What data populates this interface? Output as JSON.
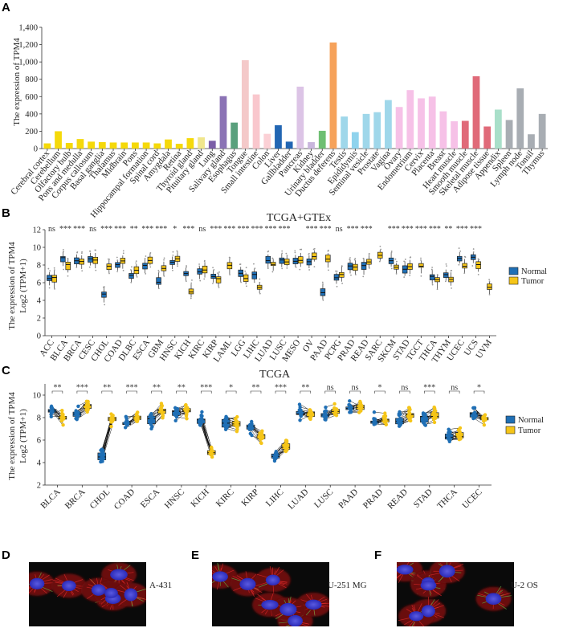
{
  "panels": {
    "a": "A",
    "b": "B",
    "c": "C",
    "d": "D",
    "e": "E",
    "f": "F"
  },
  "colors": {
    "normal": "#1f6fb5",
    "tumor": "#f5c518"
  },
  "chart_data": [
    {
      "type": "bar",
      "ylabel": "The expression of TPM4",
      "ylim": [
        0,
        1400
      ],
      "yticks": [
        "0",
        "200",
        "400",
        "600",
        "800",
        "1,000",
        "1,200",
        "1,400"
      ],
      "categories": [
        "Cerebral cortex",
        "Cerebellum",
        "Olfactory bulb",
        "Pons and medulla",
        "Corpus callosum",
        "Basal ganglia",
        "Thalamus",
        "Midbrain",
        "Pons",
        "Hippocampal formation",
        "Spinal cord",
        "Amygdala",
        "Retina",
        "Thyroid gland",
        "Pituitary gland",
        "Lung",
        "Salivary gland",
        "Esophagus",
        "Tongue",
        "Small intestine",
        "Colon",
        "Liver",
        "Gallbladder",
        "Pancreas",
        "Kidney",
        "Urinary bladder",
        "Ductus deferens",
        "Testis",
        "Epididymis",
        "Seminal vesicle",
        "Prostate",
        "Vagina",
        "Ovary",
        "Endometrium",
        "Cervix",
        "Placenta",
        "Breast",
        "Heart muscle",
        "Smooth muscle",
        "Skeletal muscle",
        "Adipose tissue",
        "Appendix",
        "Spleen",
        "Lymph node",
        "Tonsil",
        "Thymus"
      ],
      "values": [
        60,
        200,
        65,
        110,
        80,
        75,
        70,
        70,
        70,
        70,
        60,
        105,
        55,
        120,
        130,
        90,
        605,
        300,
        1020,
        625,
        170,
        270,
        80,
        715,
        75,
        205,
        1225,
        370,
        190,
        400,
        420,
        560,
        480,
        675,
        580,
        600,
        430,
        315,
        320,
        835,
        255,
        450,
        330,
        695,
        165,
        400
      ],
      "colors": [
        "#f5d90a",
        "#f5d90a",
        "#f5d90a",
        "#f5d90a",
        "#f5d90a",
        "#f5d90a",
        "#f5d90a",
        "#f5d90a",
        "#f5d90a",
        "#f5d90a",
        "#f5d90a",
        "#f5d90a",
        "#f5d90a",
        "#f5d90a",
        "#f0e68c",
        "#7b5ea7",
        "#8b73b5",
        "#5aa07d",
        "#f4c9c9",
        "#f9c7cd",
        "#fbd0d5",
        "#2266b3",
        "#2266b3",
        "#dcc4e6",
        "#c9b6dd",
        "#6fbf73",
        "#f6a25a",
        "#9fd7ea",
        "#8fd3ed",
        "#9fd7ea",
        "#9fd7ea",
        "#9fd7ea",
        "#f6c1e7",
        "#f6c1e7",
        "#f6c1e7",
        "#f6c1e7",
        "#f6c1e7",
        "#f6c1e7",
        "#e06a79",
        "#e06a79",
        "#e06a79",
        "#a9dfc9",
        "#a8adb3",
        "#a8adb3",
        "#a8adb3",
        "#a8adb3"
      ]
    },
    {
      "type": "box",
      "title": "TCGA+GTEx",
      "ylabel": "The expression of TPM4",
      "ylabel2": "Log2 (TPM+1)",
      "ylim": [
        0,
        12
      ],
      "yticks": [
        "0",
        "2",
        "4",
        "6",
        "8",
        "10",
        "12"
      ],
      "categories": [
        "ACC",
        "BLCA",
        "BRCA",
        "CESC",
        "CHOL",
        "COAD",
        "DLBC",
        "ESCA",
        "GBM",
        "HNSC",
        "KICH",
        "KIRC",
        "KIRP",
        "LAML",
        "LGG",
        "LIHC",
        "LUAD",
        "LUSC",
        "MESO",
        "OV",
        "PAAD",
        "PCPG",
        "PRAD",
        "READ",
        "SARC",
        "SKCM",
        "STAD",
        "TGCT",
        "THCA",
        "THYM",
        "UCEC",
        "UCS",
        "UVM"
      ],
      "significance": [
        "ns",
        "***",
        "***",
        "ns",
        "***",
        "***",
        "**",
        "***",
        "***",
        "*",
        "***",
        "ns",
        "***",
        "***",
        "***",
        "***",
        "***",
        "***",
        "",
        "***",
        "***",
        "ns",
        "***",
        "***",
        "",
        "***",
        "***",
        "***",
        "***",
        "**",
        "***",
        "***",
        ""
      ],
      "normal_median": [
        6.5,
        8.6,
        8.5,
        8.8,
        4.6,
        8.0,
        6.8,
        7.9,
        6.3,
        8.3,
        7.2,
        7.3,
        6.8,
        null,
        7.0,
        6.9,
        8.6,
        8.6,
        8.5,
        8.4,
        5.0,
        6.6,
        7.8,
        7.9,
        null,
        8.5,
        7.6,
        null,
        6.7,
        7.0,
        8.8,
        8.9,
        null
      ],
      "tumor_median": [
        6.5,
        7.9,
        8.4,
        8.6,
        7.8,
        8.5,
        7.3,
        8.5,
        7.7,
        8.6,
        5.0,
        7.5,
        6.4,
        8.0,
        6.5,
        5.5,
        8.0,
        8.3,
        8.5,
        9.0,
        8.7,
        6.8,
        7.8,
        8.4,
        9.2,
        7.8,
        8.0,
        7.8,
        6.4,
        6.4,
        7.9,
        7.9,
        5.4
      ],
      "legend": [
        "Normal",
        "Tumor"
      ]
    },
    {
      "type": "paired-box",
      "title": "TCGA",
      "ylabel": "The expression of TPM4",
      "ylabel2": "Log2 (TPM+1)",
      "ylim": [
        2,
        11
      ],
      "yticks": [
        "2",
        "4",
        "6",
        "8",
        "10"
      ],
      "categories": [
        "BLCA",
        "BRCA",
        "CHOL",
        "COAD",
        "ESCA",
        "HNSC",
        "KICH",
        "KIRC",
        "KIRP",
        "LIHC",
        "LUAD",
        "LUSC",
        "PAAD",
        "PRAD",
        "READ",
        "STAD",
        "THCA",
        "UCEC"
      ],
      "significance": [
        "**",
        "***",
        "**",
        "***",
        "**",
        "**",
        "***",
        "*",
        "**",
        "***",
        "**",
        "ns",
        "ns",
        "*",
        "ns",
        "***",
        "ns",
        "*"
      ],
      "normal_median": [
        8.6,
        8.4,
        4.7,
        7.7,
        7.7,
        8.6,
        7.9,
        7.5,
        7.2,
        4.6,
        8.3,
        8.4,
        8.9,
        7.9,
        7.9,
        7.9,
        6.3,
        8.4
      ],
      "tumor_median": [
        8.0,
        9.0,
        7.9,
        8.2,
        8.6,
        8.7,
        5.0,
        7.5,
        6.4,
        5.4,
        8.4,
        8.5,
        9.0,
        7.8,
        8.3,
        8.3,
        6.4,
        7.9
      ],
      "legend": [
        "Normal",
        "Tumor"
      ]
    }
  ],
  "images": [
    {
      "label": "A-431"
    },
    {
      "label": "U-251 MG"
    },
    {
      "label": "U-2 OS"
    }
  ]
}
